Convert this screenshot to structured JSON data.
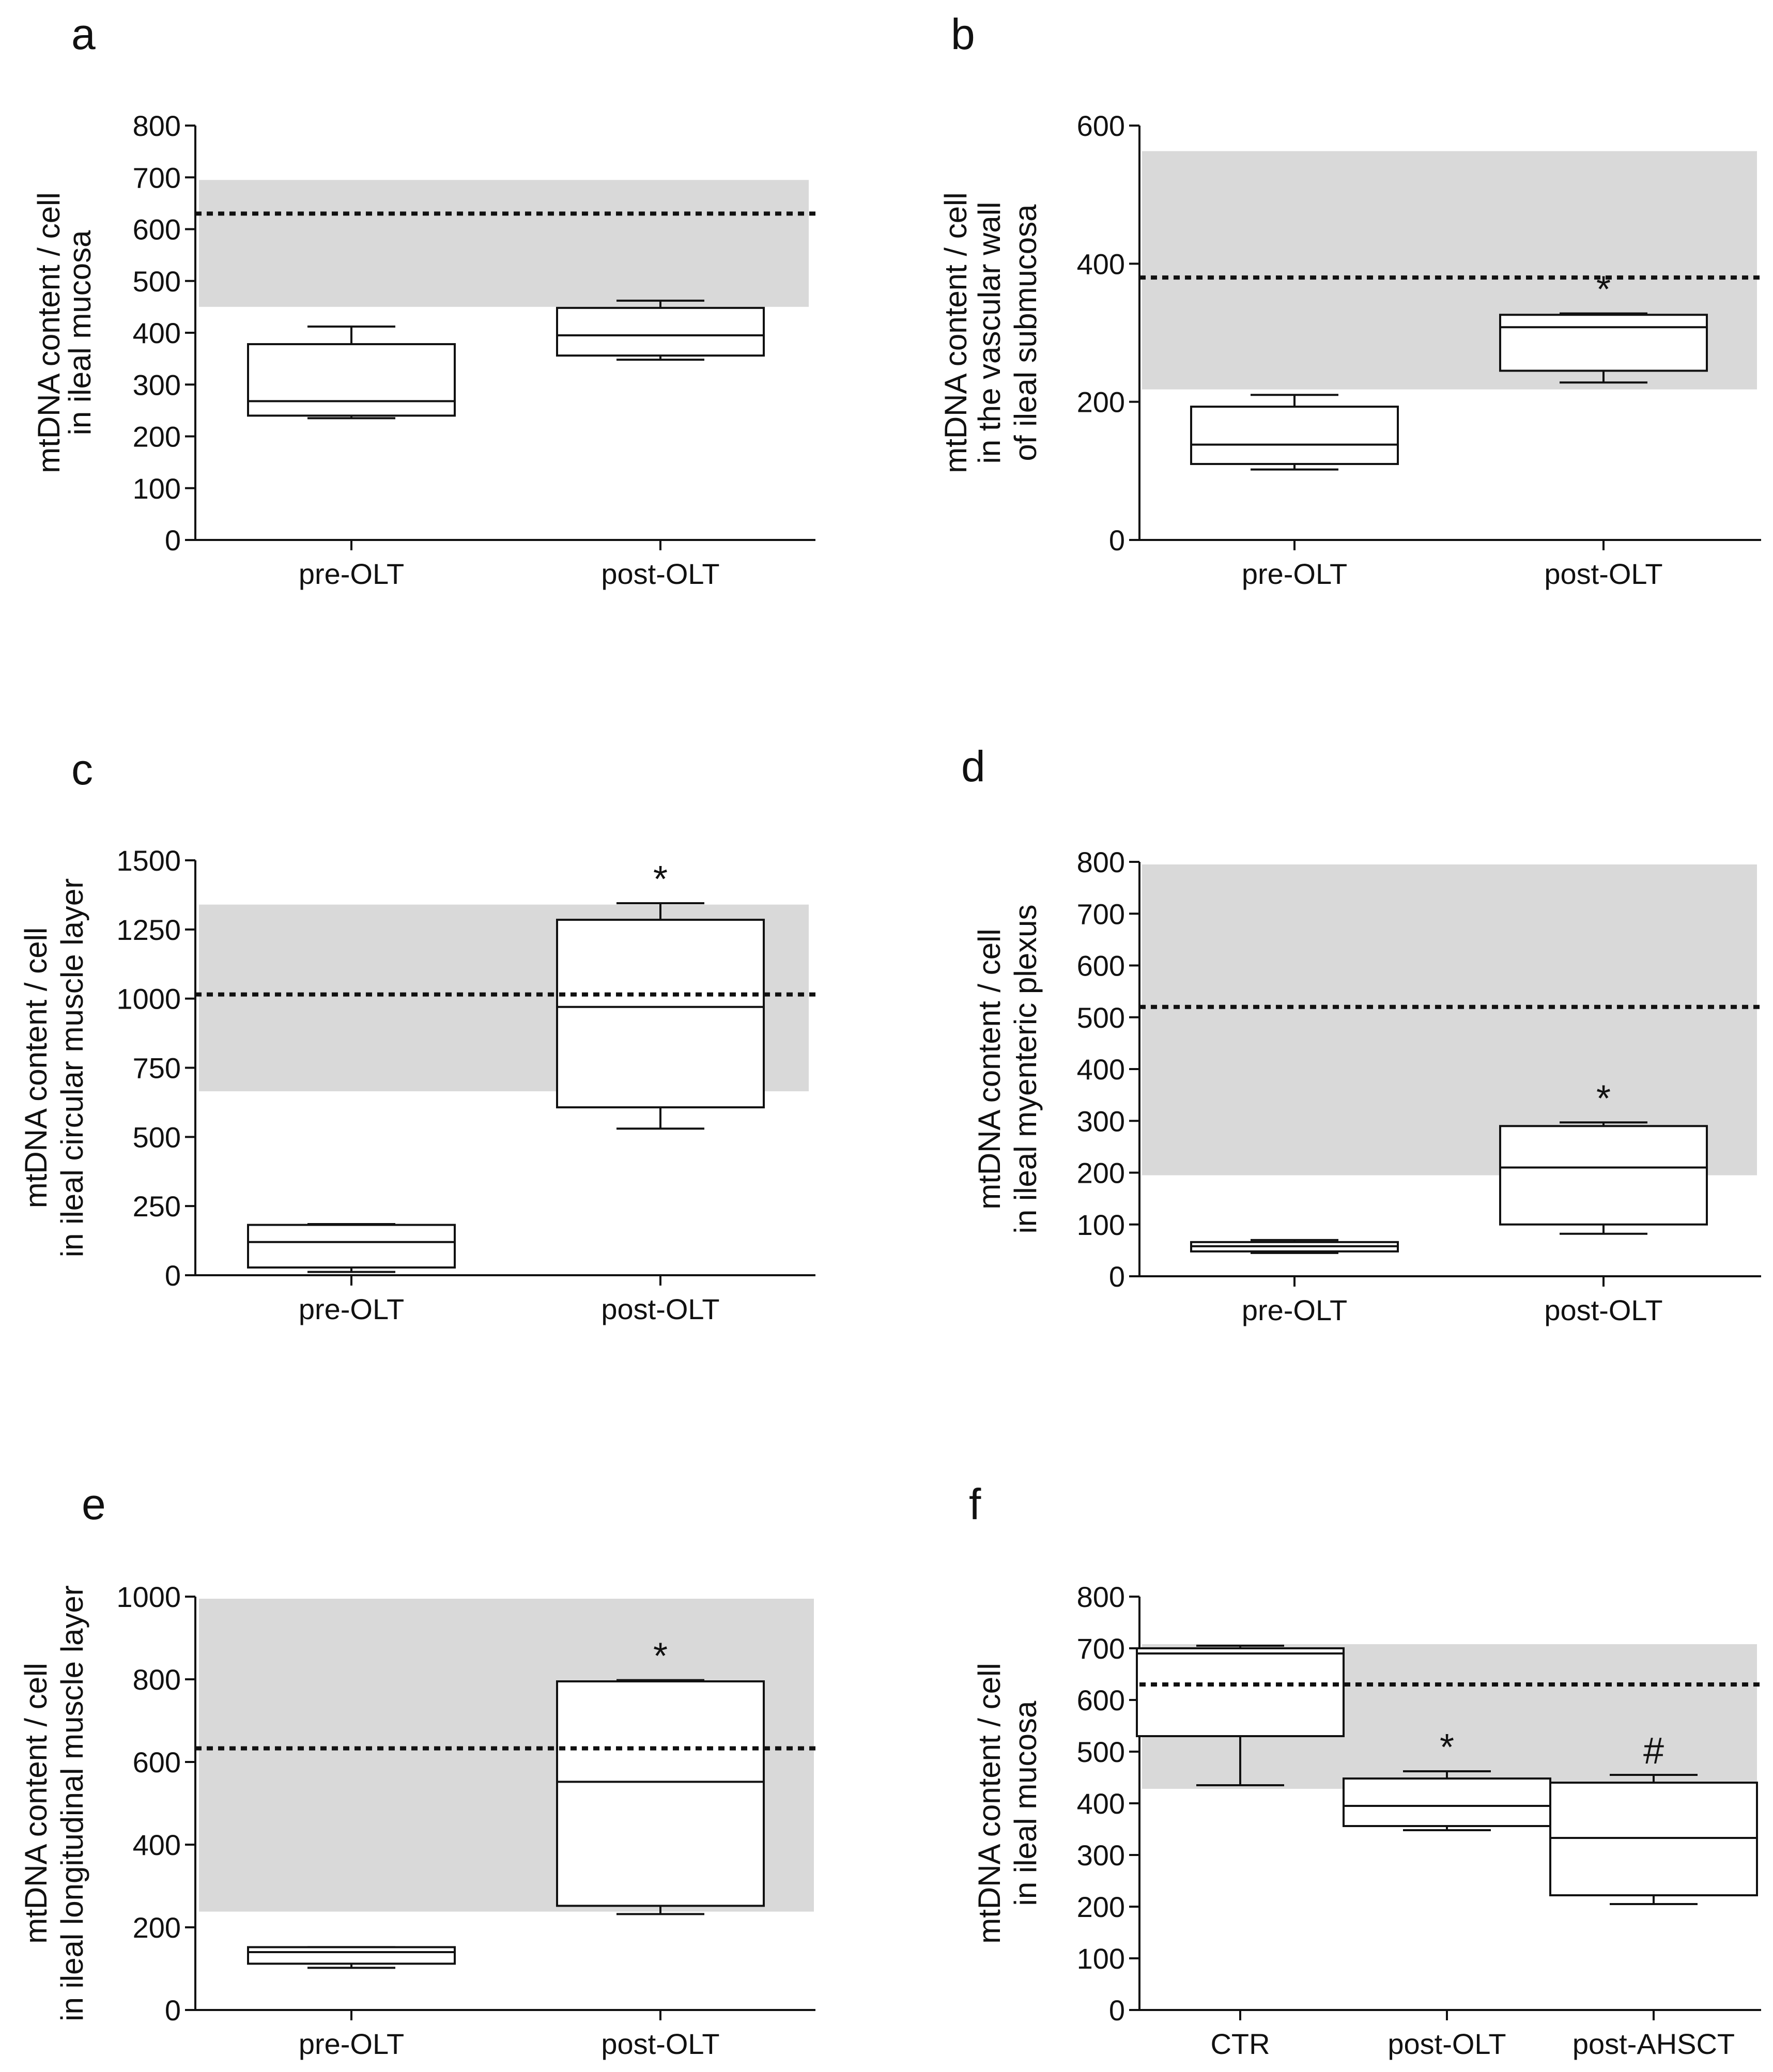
{
  "figure": {
    "colors": {
      "band": "#d9d9d9",
      "line": "#111111",
      "box_fill": "#ffffff",
      "reference_line": "#111111"
    },
    "panels": [
      {
        "letter": "a",
        "ylabel": [
          "mtDNA content / cell",
          "in ileal mucosa"
        ],
        "categories": [
          "pre-OLT",
          "post-OLT"
        ],
        "ylim": [
          0,
          800
        ],
        "yticks": [
          "0",
          "100",
          "200",
          "300",
          "400",
          "500",
          "600",
          "700",
          "800"
        ],
        "reference_band": [
          450,
          695
        ],
        "reference_line": 630,
        "boxes": [
          {
            "min": 235,
            "q1": 240,
            "median": 268,
            "q3": 378,
            "max": 412,
            "marker": ""
          },
          {
            "min": 348,
            "q1": 356,
            "median": 395,
            "q3": 448,
            "max": 462,
            "marker": ""
          }
        ]
      },
      {
        "letter": "b",
        "ylabel": [
          "mtDNA content / cell",
          "in the vascular wall",
          "of ileal submucosa"
        ],
        "categories": [
          "pre-OLT",
          "post-OLT"
        ],
        "ylim": [
          0,
          600
        ],
        "yticks": [
          "0",
          "200",
          "400",
          "600"
        ],
        "reference_band": [
          218,
          563
        ],
        "reference_line": 380,
        "boxes": [
          {
            "min": 102,
            "q1": 110,
            "median": 138,
            "q3": 193,
            "max": 210,
            "marker": ""
          },
          {
            "min": 228,
            "q1": 245,
            "median": 308,
            "q3": 326,
            "max": 328,
            "marker": "*"
          }
        ]
      },
      {
        "letter": "c",
        "ylabel": [
          "mtDNA content / cell",
          "in ileal circular muscle layer"
        ],
        "categories": [
          "pre-OLT",
          "post-OLT"
        ],
        "ylim": [
          0,
          1500
        ],
        "yticks": [
          "0",
          "250",
          "500",
          "750",
          "1000",
          "1250",
          "1500"
        ],
        "reference_band": [
          665,
          1340
        ],
        "reference_line": 1015,
        "boxes": [
          {
            "min": 12,
            "q1": 28,
            "median": 120,
            "q3": 182,
            "max": 185,
            "marker": ""
          },
          {
            "min": 530,
            "q1": 607,
            "median": 970,
            "q3": 1285,
            "max": 1345,
            "marker": "*"
          }
        ]
      },
      {
        "letter": "d",
        "ylabel": [
          "mtDNA content / cell",
          "in ileal myenteric plexus"
        ],
        "categories": [
          "pre-OLT",
          "post-OLT"
        ],
        "ylim": [
          0,
          800
        ],
        "yticks": [
          "0",
          "100",
          "200",
          "300",
          "400",
          "500",
          "600",
          "700",
          "800"
        ],
        "reference_band": [
          195,
          795
        ],
        "reference_line": 520,
        "boxes": [
          {
            "min": 45,
            "q1": 48,
            "median": 58,
            "q3": 66,
            "max": 70,
            "marker": ""
          },
          {
            "min": 82,
            "q1": 100,
            "median": 210,
            "q3": 290,
            "max": 297,
            "marker": "*"
          }
        ]
      },
      {
        "letter": "e",
        "ylabel": [
          "mtDNA content / cell",
          "in ileal longitudinal muscle layer"
        ],
        "categories": [
          "pre-OLT",
          "post-OLT"
        ],
        "ylim": [
          0,
          1000
        ],
        "yticks": [
          "0",
          "200",
          "400",
          "600",
          "800",
          "1000"
        ],
        "reference_band": [
          238,
          995
        ],
        "reference_line": 633,
        "boxes": [
          {
            "min": 102,
            "q1": 112,
            "median": 140,
            "q3": 152,
            "max": 152,
            "marker": ""
          },
          {
            "min": 232,
            "q1": 252,
            "median": 552,
            "q3": 795,
            "max": 798,
            "marker": "*"
          }
        ]
      },
      {
        "letter": "f",
        "ylabel": [
          "mtDNA content / cell",
          "in ileal mucosa"
        ],
        "categories": [
          "CTR",
          "post-OLT",
          "post-AHSCT"
        ],
        "ylim": [
          0,
          800
        ],
        "yticks": [
          "0",
          "100",
          "200",
          "300",
          "400",
          "500",
          "600",
          "700",
          "800"
        ],
        "reference_band": [
          428,
          708
        ],
        "reference_line": 630,
        "boxes": [
          {
            "min": 435,
            "q1": 530,
            "median": 690,
            "q3": 700,
            "max": 705,
            "marker": ""
          },
          {
            "min": 348,
            "q1": 356,
            "median": 395,
            "q3": 448,
            "max": 462,
            "marker": "*"
          },
          {
            "min": 205,
            "q1": 222,
            "median": 333,
            "q3": 440,
            "max": 455,
            "marker": "#"
          }
        ]
      }
    ]
  },
  "chart_data": [
    {
      "type": "box",
      "panel": "a",
      "categories": [
        "pre-OLT",
        "post-OLT"
      ],
      "ylabel": "mtDNA content / cell in ileal mucosa",
      "ylim": [
        0,
        800
      ],
      "series": [
        {
          "name": "pre-OLT",
          "min": 235,
          "q1": 240,
          "median": 268,
          "q3": 378,
          "max": 412
        },
        {
          "name": "post-OLT",
          "min": 348,
          "q1": 356,
          "median": 395,
          "q3": 448,
          "max": 462
        }
      ],
      "reference_range": [
        450,
        695
      ],
      "reference_mean": 630,
      "annotations": []
    },
    {
      "type": "box",
      "panel": "b",
      "categories": [
        "pre-OLT",
        "post-OLT"
      ],
      "ylabel": "mtDNA content / cell in the vascular wall of ileal submucosa",
      "ylim": [
        0,
        600
      ],
      "series": [
        {
          "name": "pre-OLT",
          "min": 102,
          "q1": 110,
          "median": 138,
          "q3": 193,
          "max": 210
        },
        {
          "name": "post-OLT",
          "min": 228,
          "q1": 245,
          "median": 308,
          "q3": 326,
          "max": 328
        }
      ],
      "reference_range": [
        218,
        563
      ],
      "reference_mean": 380,
      "annotations": [
        "* post-OLT"
      ]
    },
    {
      "type": "box",
      "panel": "c",
      "categories": [
        "pre-OLT",
        "post-OLT"
      ],
      "ylabel": "mtDNA content / cell in ileal circular muscle layer",
      "ylim": [
        0,
        1500
      ],
      "series": [
        {
          "name": "pre-OLT",
          "min": 12,
          "q1": 28,
          "median": 120,
          "q3": 182,
          "max": 185
        },
        {
          "name": "post-OLT",
          "min": 530,
          "q1": 607,
          "median": 970,
          "q3": 1285,
          "max": 1345
        }
      ],
      "reference_range": [
        665,
        1340
      ],
      "reference_mean": 1015,
      "annotations": [
        "* post-OLT"
      ]
    },
    {
      "type": "box",
      "panel": "d",
      "categories": [
        "pre-OLT",
        "post-OLT"
      ],
      "ylabel": "mtDNA content / cell in ileal myenteric plexus",
      "ylim": [
        0,
        800
      ],
      "series": [
        {
          "name": "pre-OLT",
          "min": 45,
          "q1": 48,
          "median": 58,
          "q3": 66,
          "max": 70
        },
        {
          "name": "post-OLT",
          "min": 82,
          "q1": 100,
          "median": 210,
          "q3": 290,
          "max": 297
        }
      ],
      "reference_range": [
        195,
        795
      ],
      "reference_mean": 520,
      "annotations": [
        "* post-OLT"
      ]
    },
    {
      "type": "box",
      "panel": "e",
      "categories": [
        "pre-OLT",
        "post-OLT"
      ],
      "ylabel": "mtDNA content / cell in ileal longitudinal muscle layer",
      "ylim": [
        0,
        1000
      ],
      "series": [
        {
          "name": "pre-OLT",
          "min": 102,
          "q1": 112,
          "median": 140,
          "q3": 152,
          "max": 152
        },
        {
          "name": "post-OLT",
          "min": 232,
          "q1": 252,
          "median": 552,
          "q3": 795,
          "max": 798
        }
      ],
      "reference_range": [
        238,
        995
      ],
      "reference_mean": 633,
      "annotations": [
        "* post-OLT"
      ]
    },
    {
      "type": "box",
      "panel": "f",
      "categories": [
        "CTR",
        "post-OLT",
        "post-AHSCT"
      ],
      "ylabel": "mtDNA content / cell in ileal mucosa",
      "ylim": [
        0,
        800
      ],
      "series": [
        {
          "name": "CTR",
          "min": 435,
          "q1": 530,
          "median": 690,
          "q3": 700,
          "max": 705
        },
        {
          "name": "post-OLT",
          "min": 348,
          "q1": 356,
          "median": 395,
          "q3": 448,
          "max": 462
        },
        {
          "name": "post-AHSCT",
          "min": 205,
          "q1": 222,
          "median": 333,
          "q3": 440,
          "max": 455
        }
      ],
      "reference_range": [
        428,
        708
      ],
      "reference_mean": 630,
      "annotations": [
        "* post-OLT",
        "# post-AHSCT"
      ]
    }
  ]
}
